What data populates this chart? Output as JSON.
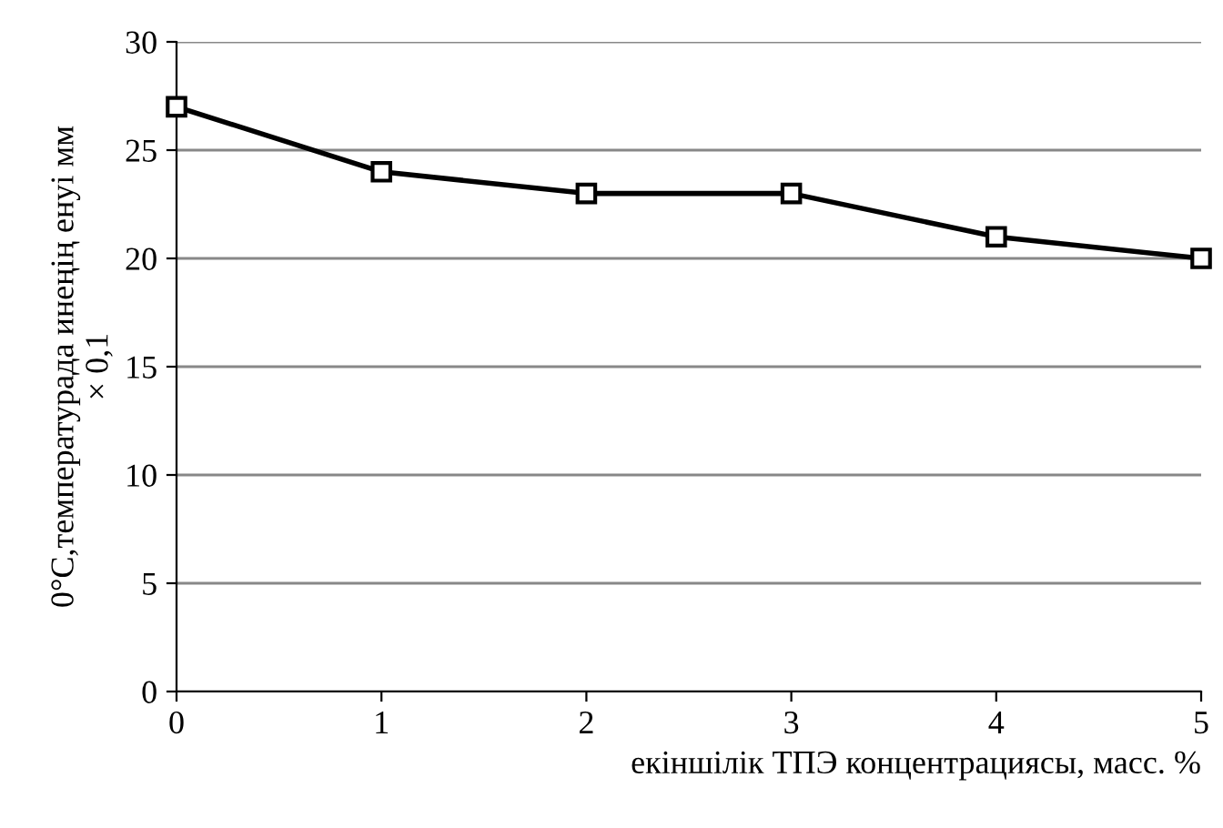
{
  "chart_data": {
    "type": "line",
    "xlabel": "екіншілік ТПЭ концентрациясы, масс. %",
    "ylabel": "0°C,температурада инеңің енуі мм\n× 0,1",
    "x": [
      0,
      1,
      2,
      3,
      4,
      5
    ],
    "series": [
      {
        "color": "#000000",
        "values": [
          27,
          24,
          23,
          23,
          21,
          20
        ]
      }
    ],
    "xlim": [
      0,
      5
    ],
    "xticks": [
      0,
      1,
      2,
      3,
      4,
      5
    ],
    "ylim": [
      0,
      30
    ],
    "yticks": [
      0,
      5,
      10,
      15,
      20,
      25,
      30
    ],
    "grid": "y",
    "marker": "square",
    "line_style": "solid",
    "legend": false
  }
}
